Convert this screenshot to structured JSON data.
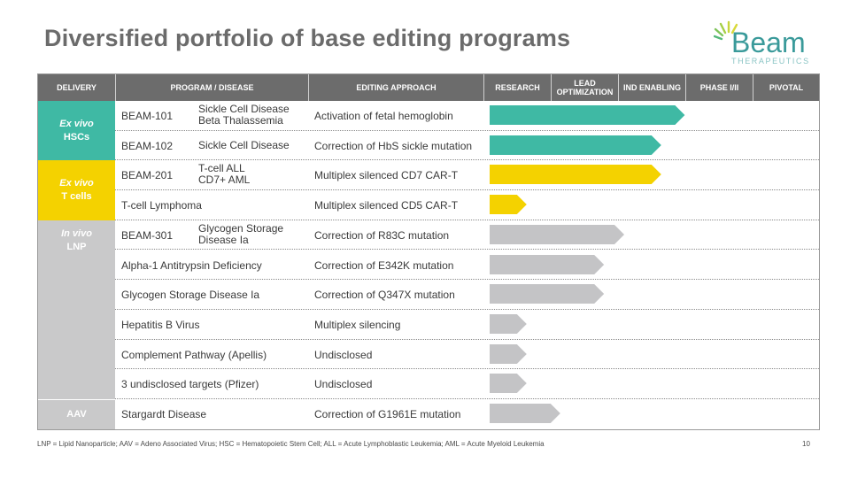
{
  "title": "Diversified portfolio of base editing programs",
  "logo": {
    "word": "Beam",
    "sub": "THERAPEUTICS"
  },
  "header": {
    "delivery": "DELIVERY",
    "program": "PROGRAM / DISEASE",
    "approach": "EDITING APPROACH",
    "stages": [
      "RESEARCH",
      "LEAD OPTIMIZATION",
      "IND ENABLING",
      "PHASE I/II",
      "PIVOTAL"
    ]
  },
  "delivery_groups": [
    {
      "line1": "Ex vivo",
      "line2": "HSCs"
    },
    {
      "line1": "Ex vivo",
      "line2": "T cells"
    },
    {
      "line1": "In vivo",
      "line2": "LNP"
    },
    {
      "line1": "",
      "line2": "AAV"
    }
  ],
  "programs": [
    {
      "program": "BEAM-101",
      "disease": "Sickle Cell Disease\nBeta Thalassemia",
      "approach": "Activation of fetal hemoglobin",
      "progress_stages": 2.9,
      "color": "#3fb9a4"
    },
    {
      "program": "BEAM-102",
      "disease": "Sickle Cell Disease",
      "approach": "Correction of HbS sickle mutation",
      "progress_stages": 2.55,
      "color": "#3fb9a4"
    },
    {
      "program": "BEAM-201",
      "disease": "T-cell ALL\nCD7+ AML",
      "approach": "Multiplex silenced CD7 CAR-T",
      "progress_stages": 2.55,
      "color": "#f4d200"
    },
    {
      "program": "T-cell Lymphoma",
      "disease": "",
      "approach": "Multiplex silenced CD5 CAR-T",
      "progress_stages": 0.55,
      "color": "#f4d200"
    },
    {
      "program": "BEAM-301",
      "disease": "Glycogen Storage\nDisease Ia",
      "approach": "Correction of R83C mutation",
      "progress_stages": 2.0,
      "color": "#c4c4c6"
    },
    {
      "program": "Alpha-1 Antitrypsin Deficiency",
      "disease": "",
      "approach": "Correction of E342K mutation",
      "progress_stages": 1.7,
      "color": "#c4c4c6"
    },
    {
      "program": "Glycogen Storage Disease Ia",
      "disease": "",
      "approach": "Correction of Q347X mutation",
      "progress_stages": 1.7,
      "color": "#c4c4c6"
    },
    {
      "program": "Hepatitis B Virus",
      "disease": "",
      "approach": "Multiplex silencing",
      "progress_stages": 0.55,
      "color": "#c4c4c6"
    },
    {
      "program": "Complement Pathway (Apellis)",
      "disease": "",
      "approach": "Undisclosed",
      "progress_stages": 0.55,
      "color": "#c4c4c6"
    },
    {
      "program": "3 undisclosed targets (Pfizer)",
      "disease": "",
      "approach": "Undisclosed",
      "progress_stages": 0.55,
      "color": "#c4c4c6"
    },
    {
      "program": "Stargardt Disease",
      "disease": "",
      "approach": "Correction of G1961E mutation",
      "progress_stages": 1.05,
      "color": "#c4c4c6"
    }
  ],
  "footnote": "LNP = Lipid Nanoparticle; AAV = Adeno Associated Virus; HSC = Hematopoietic Stem Cell; ALL = Acute Lymphoblastic Leukemia; AML = Acute Myeloid Leukemia",
  "page_number": "10"
}
